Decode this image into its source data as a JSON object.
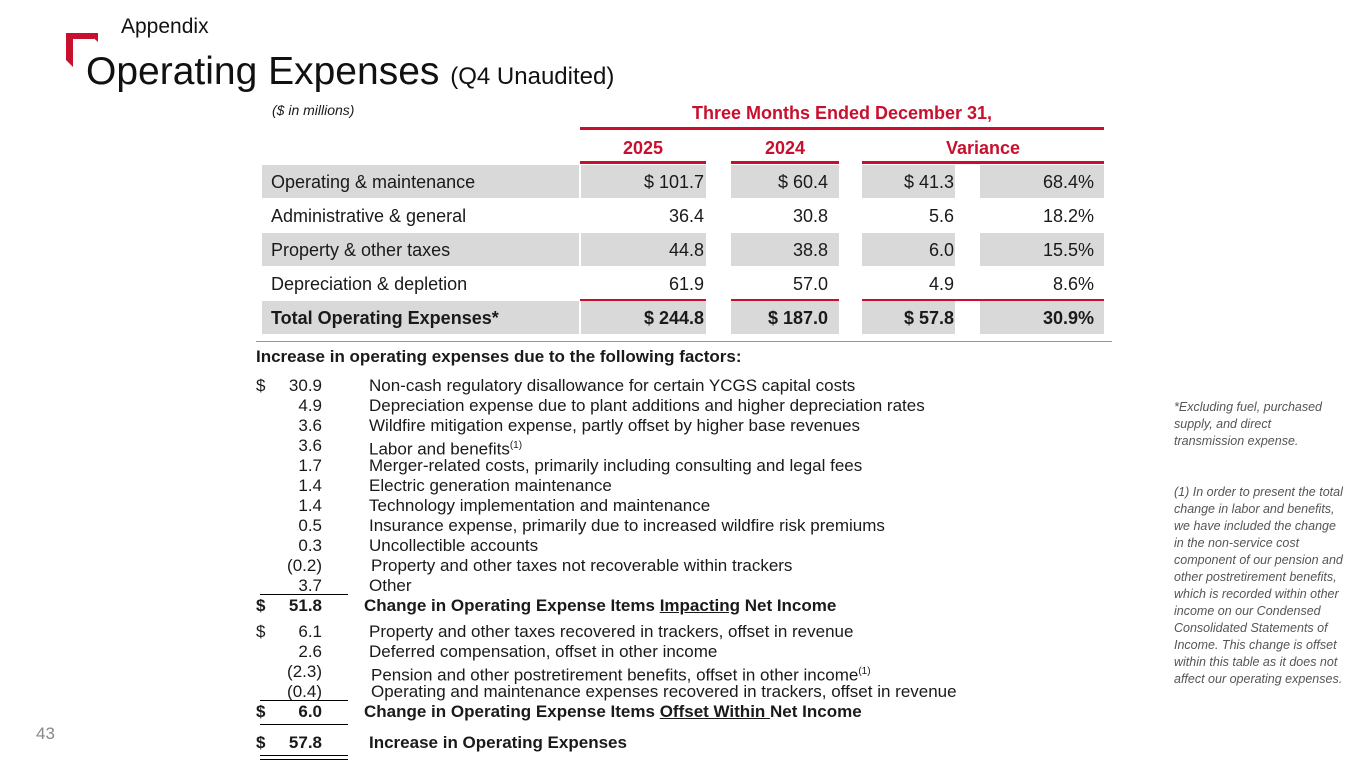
{
  "header": {
    "section": "Appendix",
    "title": "Operating Expenses",
    "title_suffix": "(Q4 Unaudited)",
    "brand_color": "#c8102e"
  },
  "table": {
    "units": "($ in millions)",
    "period_header": "Three Months Ended December 31,",
    "col_2025": "2025",
    "col_2024": "2024",
    "col_variance": "Variance",
    "rows": [
      {
        "label": "Operating & maintenance",
        "v2025": "$ 101.7",
        "v2024": "$ 60.4",
        "var": "$ 41.3",
        "pct": "68.4%"
      },
      {
        "label": "Administrative & general",
        "v2025": "36.4",
        "v2024": "30.8",
        "var": "5.6",
        "pct": "18.2%"
      },
      {
        "label": "Property & other taxes",
        "v2025": "44.8",
        "v2024": "38.8",
        "var": "6.0",
        "pct": "15.5%"
      },
      {
        "label": "Depreciation & depletion",
        "v2025": "61.9",
        "v2024": "57.0",
        "var": "4.9",
        "pct": "8.6%"
      },
      {
        "label": "Total Operating Expenses*",
        "v2025": "$ 244.8",
        "v2024": "$ 187.0",
        "var": "$ 57.8",
        "pct": "30.9%"
      }
    ]
  },
  "factors": {
    "heading": "Increase in operating expenses due to the following factors:",
    "group1": [
      {
        "dollar": "$",
        "amount": "30.9",
        "text": "Non-cash regulatory disallowance for certain YCGS capital costs"
      },
      {
        "dollar": "",
        "amount": "4.9",
        "text": "Depreciation expense due to plant additions and higher depreciation rates"
      },
      {
        "dollar": "",
        "amount": "3.6",
        "text": "Wildfire mitigation expense, partly offset by higher base revenues"
      },
      {
        "dollar": "",
        "amount": "3.6",
        "text": "Labor and benefits",
        "sup": "(1)"
      },
      {
        "dollar": "",
        "amount": "1.7",
        "text": "Merger-related costs, primarily including consulting and legal fees"
      },
      {
        "dollar": "",
        "amount": "1.4",
        "text": "Electric generation maintenance"
      },
      {
        "dollar": "",
        "amount": "1.4",
        "text": "Technology implementation and maintenance"
      },
      {
        "dollar": "",
        "amount": "0.5",
        "text": "Insurance expense, primarily due to increased wildfire risk premiums"
      },
      {
        "dollar": "",
        "amount": "0.3",
        "text": "Uncollectible accounts"
      },
      {
        "dollar": "",
        "amount": "(0.2)",
        "text": "Property and other taxes not recoverable within trackers"
      },
      {
        "dollar": "",
        "amount": "3.7",
        "text": "Other"
      }
    ],
    "subtotal1": {
      "dollar": "$",
      "amount": "51.8",
      "pre": "Change in Operating Expense Items ",
      "u": "Impacting",
      "post": " Net Income"
    },
    "group2": [
      {
        "dollar": "$",
        "amount": "6.1",
        "text": "Property and other taxes recovered in trackers, offset in revenue"
      },
      {
        "dollar": "",
        "amount": "2.6",
        "text": "Deferred compensation, offset in other income"
      },
      {
        "dollar": "",
        "amount": "(2.3)",
        "text": "Pension and other postretirement benefits, offset in other income",
        "sup": "(1)"
      },
      {
        "dollar": "",
        "amount": "(0.4)",
        "text": "Operating and maintenance expenses recovered in trackers, offset in revenue"
      }
    ],
    "subtotal2": {
      "dollar": "$",
      "amount": "6.0",
      "pre": "Change in Operating Expense Items ",
      "u": "Offset Within ",
      "post": "Net Income"
    },
    "total": {
      "dollar": "$",
      "amount": "57.8",
      "text": "Increase in Operating Expenses"
    }
  },
  "footnotes": {
    "star": "*Excluding fuel, purchased supply, and direct transmission expense.",
    "one": "(1) In order to present the total change in labor and benefits, we have included the change in the non-service cost component of our pension and other postretirement benefits, which is recorded within other income on our Condensed Consolidated Statements of Income. This change is offset within this table as it does not affect our operating expenses."
  },
  "page_number": "43"
}
